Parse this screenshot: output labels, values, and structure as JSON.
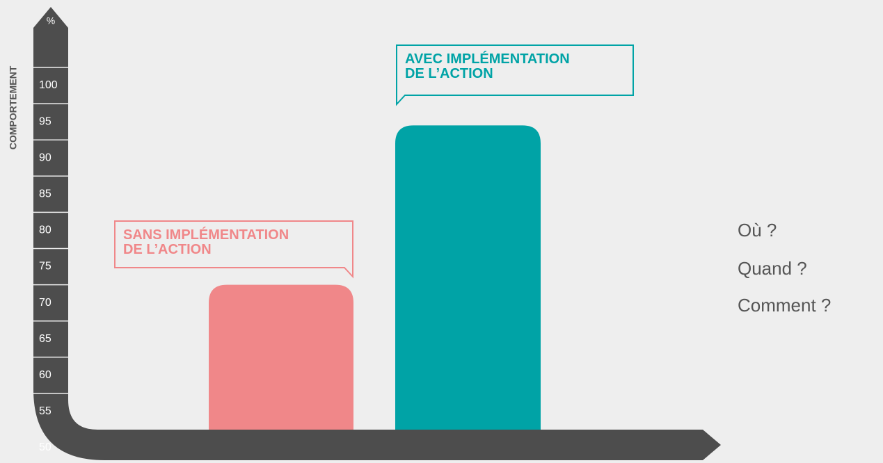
{
  "chart_data": {
    "type": "bar",
    "y_axis_label": "COMPORTEMENT",
    "y_unit": "%",
    "categories": [
      "SANS IMPLÉMENTATION\nDE L’ACTION",
      "AVEC IMPLÉMENTATION\nDE L’ACTION"
    ],
    "values": [
      70,
      92
    ],
    "colors": [
      "#f08789",
      "#00a3a6"
    ],
    "ylim": [
      50,
      100
    ],
    "yticks": [
      50,
      55,
      60,
      65,
      70,
      75,
      80,
      85,
      90,
      95,
      100
    ],
    "annotations": [
      "Où ?",
      "Quand ?",
      "Comment ?"
    ]
  }
}
